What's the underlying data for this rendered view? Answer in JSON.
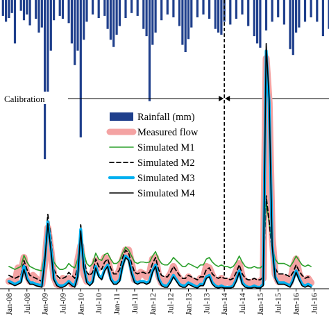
{
  "chart_data": {
    "type": "line",
    "title": "",
    "xlabel": "",
    "ylabel": "",
    "x_tick_labels": [
      "Jan-08",
      "Jul-08",
      "Jan-09",
      "Jul-09",
      "Jan-10",
      "Jul-10",
      "Jan-11",
      "Jul-11",
      "Jan-12",
      "Jul-12",
      "Jan-13",
      "Jul-13",
      "Jan-14",
      "Jul-14",
      "Jan-15",
      "Jul-15",
      "Jan-16",
      "Jul-16"
    ],
    "x_range": [
      "2007-10",
      "2016-12"
    ],
    "grid": false,
    "legend_position": "center",
    "annotations": {
      "calibration_label": "Calibration",
      "divider_date": "2014-01"
    },
    "rainfall": {
      "name": "Rainfall (mm)",
      "color": "#1f3f8c",
      "dates": [
        "2007-11",
        "2007-12",
        "2008-01",
        "2008-02",
        "2008-03",
        "2008-05",
        "2008-06",
        "2008-07",
        "2008-08",
        "2008-10",
        "2008-11",
        "2008-12",
        "2009-01",
        "2009-02",
        "2009-03",
        "2009-04",
        "2009-06",
        "2009-07",
        "2009-09",
        "2009-10",
        "2009-11",
        "2009-12",
        "2010-01",
        "2010-02",
        "2010-03",
        "2010-05",
        "2010-07",
        "2010-09",
        "2010-10",
        "2010-11",
        "2010-12",
        "2011-01",
        "2011-02",
        "2011-04",
        "2011-06",
        "2011-08",
        "2011-10",
        "2011-11",
        "2011-12",
        "2012-01",
        "2012-02",
        "2012-04",
        "2012-06",
        "2012-08",
        "2012-10",
        "2012-11",
        "2012-12",
        "2013-01",
        "2013-02",
        "2013-04",
        "2013-06",
        "2013-08",
        "2013-10",
        "2013-11",
        "2013-12",
        "2014-01",
        "2014-03",
        "2014-05",
        "2014-07",
        "2014-09",
        "2014-11",
        "2014-12",
        "2015-01",
        "2015-03",
        "2015-05",
        "2015-07",
        "2015-09",
        "2015-11",
        "2015-12",
        "2016-01",
        "2016-02",
        "2016-04",
        "2016-06",
        "2016-08",
        "2016-10",
        "2016-12"
      ],
      "values": [
        22,
        30,
        25,
        18,
        60,
        15,
        28,
        20,
        35,
        26,
        45,
        38,
        220,
        130,
        70,
        28,
        22,
        26,
        32,
        60,
        90,
        70,
        190,
        55,
        30,
        20,
        25,
        22,
        40,
        55,
        65,
        48,
        36,
        25,
        18,
        22,
        40,
        50,
        140,
        62,
        45,
        28,
        20,
        24,
        36,
        62,
        72,
        54,
        38,
        24,
        20,
        26,
        40,
        45,
        48,
        30,
        34,
        26,
        20,
        36,
        50,
        60,
        66,
        42,
        30,
        24,
        34,
        68,
        76,
        45,
        38,
        30,
        24,
        30,
        50,
        40
      ]
    },
    "series": [
      {
        "name": "Measured flow",
        "color": "#f4a3a3",
        "values": [
          10,
          12,
          8,
          28,
          20,
          42,
          18,
          10,
          18,
          14,
          10,
          6,
          36,
          82,
          52,
          16,
          6,
          4,
          14,
          10,
          14,
          6,
          8,
          38,
          58,
          20,
          10,
          14,
          22,
          38,
          28,
          32,
          42,
          40,
          22,
          12,
          16,
          26,
          40,
          52,
          52,
          34,
          12,
          14,
          22,
          20,
          16,
          20,
          40,
          42,
          18,
          8,
          10,
          14,
          20,
          30,
          20,
          14,
          8,
          8,
          16,
          10,
          10,
          6,
          14,
          14,
          30,
          28,
          18,
          10,
          8,
          14,
          8,
          10,
          8,
          14,
          24,
          34,
          16,
          8,
          8,
          8,
          10,
          8,
          10,
          14,
          310,
          250,
          70,
          20,
          10,
          16,
          14,
          10,
          8,
          28,
          40,
          20,
          12,
          10,
          14,
          8
        ]
      },
      {
        "name": "Simulated M1",
        "color": "#2ca02c",
        "values": [
          30,
          28,
          26,
          28,
          30,
          45,
          36,
          30,
          28,
          26,
          25,
          24,
          48,
          75,
          60,
          36,
          30,
          26,
          26,
          28,
          34,
          30,
          28,
          40,
          82,
          48,
          34,
          30,
          34,
          48,
          40,
          38,
          46,
          48,
          40,
          34,
          34,
          38,
          48,
          56,
          52,
          44,
          36,
          34,
          36,
          36,
          35,
          36,
          44,
          50,
          40,
          34,
          32,
          32,
          36,
          42,
          38,
          34,
          30,
          30,
          34,
          32,
          30,
          28,
          32,
          32,
          40,
          42,
          36,
          32,
          30,
          32,
          30,
          30,
          28,
          30,
          36,
          44,
          36,
          30,
          28,
          28,
          30,
          28,
          28,
          32,
          118,
          88,
          58,
          40,
          34,
          34,
          34,
          32,
          30,
          36,
          44,
          38,
          32,
          30,
          32,
          30
        ]
      },
      {
        "name": "Simulated M2",
        "color": "#000000",
        "dashed": true,
        "values": [
          18,
          16,
          14,
          16,
          18,
          38,
          26,
          18,
          16,
          14,
          12,
          10,
          50,
          100,
          70,
          26,
          18,
          14,
          14,
          16,
          22,
          18,
          14,
          30,
          86,
          40,
          22,
          18,
          22,
          40,
          30,
          26,
          36,
          40,
          28,
          20,
          20,
          26,
          42,
          52,
          48,
          34,
          22,
          20,
          22,
          22,
          20,
          22,
          34,
          42,
          26,
          18,
          16,
          16,
          22,
          30,
          24,
          18,
          14,
          14,
          18,
          16,
          14,
          12,
          16,
          16,
          26,
          28,
          20,
          16,
          14,
          16,
          14,
          14,
          12,
          14,
          22,
          32,
          20,
          14,
          12,
          12,
          14,
          12,
          12,
          16,
          125,
          90,
          50,
          28,
          20,
          20,
          20,
          18,
          16,
          22,
          32,
          24,
          18,
          14,
          16,
          14
        ]
      },
      {
        "name": "Simulated M3",
        "color": "#00b0f0",
        "values": [
          10,
          8,
          6,
          8,
          10,
          30,
          14,
          8,
          8,
          6,
          5,
          4,
          40,
          90,
          55,
          14,
          6,
          4,
          4,
          6,
          10,
          6,
          4,
          18,
          80,
          30,
          10,
          6,
          10,
          30,
          18,
          14,
          26,
          32,
          14,
          8,
          8,
          12,
          32,
          44,
          40,
          22,
          10,
          8,
          10,
          10,
          8,
          10,
          24,
          32,
          14,
          6,
          4,
          4,
          10,
          18,
          12,
          6,
          4,
          4,
          8,
          6,
          4,
          2,
          6,
          6,
          16,
          18,
          8,
          4,
          2,
          4,
          2,
          2,
          2,
          4,
          12,
          24,
          8,
          4,
          2,
          2,
          4,
          2,
          2,
          6,
          320,
          250,
          60,
          16,
          8,
          8,
          8,
          6,
          4,
          12,
          24,
          14,
          6,
          4,
          6,
          4
        ]
      },
      {
        "name": "Simulated M4",
        "color": "#000000",
        "values": [
          8,
          6,
          4,
          6,
          8,
          26,
          12,
          6,
          6,
          4,
          3,
          2,
          38,
          88,
          52,
          12,
          4,
          2,
          2,
          4,
          8,
          4,
          2,
          16,
          78,
          28,
          8,
          4,
          8,
          28,
          16,
          12,
          24,
          30,
          12,
          6,
          6,
          10,
          30,
          42,
          38,
          20,
          8,
          6,
          8,
          8,
          6,
          8,
          22,
          30,
          12,
          4,
          2,
          2,
          8,
          16,
          10,
          4,
          2,
          2,
          6,
          4,
          2,
          1,
          4,
          4,
          14,
          16,
          6,
          2,
          1,
          2,
          1,
          1,
          1,
          2,
          10,
          22,
          6,
          2,
          1,
          1,
          2,
          1,
          1,
          4,
          330,
          255,
          58,
          14,
          6,
          6,
          6,
          4,
          2,
          10,
          22,
          12,
          4,
          2,
          4,
          2
        ]
      }
    ],
    "series_start": "2008-01",
    "flow_axis_max": 340,
    "rain_axis_max": 240
  }
}
